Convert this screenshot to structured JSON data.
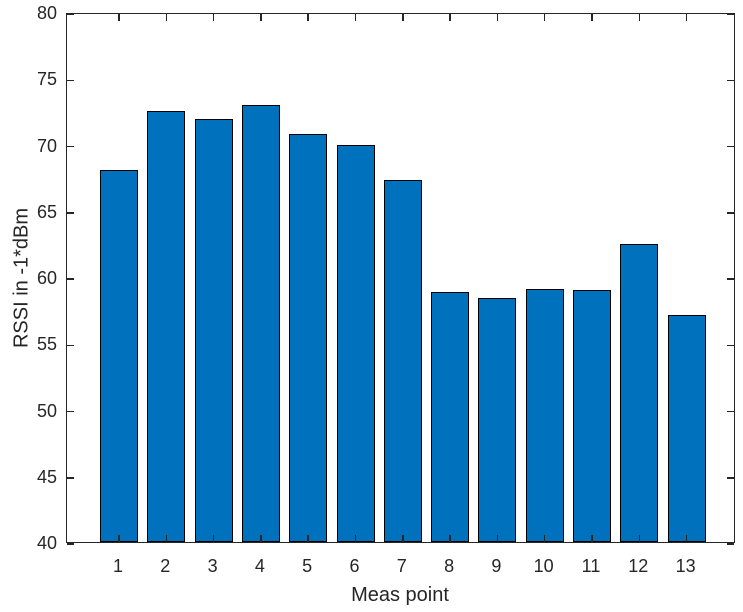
{
  "chart_data": {
    "type": "bar",
    "categories": [
      "1",
      "2",
      "3",
      "4",
      "5",
      "6",
      "7",
      "8",
      "9",
      "10",
      "11",
      "12",
      "13"
    ],
    "values": [
      68.1,
      72.5,
      71.9,
      73.0,
      70.8,
      70.0,
      67.3,
      58.9,
      58.4,
      59.1,
      59.0,
      62.5,
      57.1
    ],
    "title": "",
    "xlabel": "Meas point",
    "ylabel": "RSSI in -1*dBm",
    "ylim": [
      40,
      80
    ],
    "yticks": [
      40,
      45,
      50,
      55,
      60,
      65,
      70,
      75,
      80
    ],
    "grid": false,
    "legend": null,
    "bar_color": "#0072BD",
    "bar_edge_color": "#000000",
    "axis_color": "#262626",
    "background_color": "#ffffff"
  }
}
